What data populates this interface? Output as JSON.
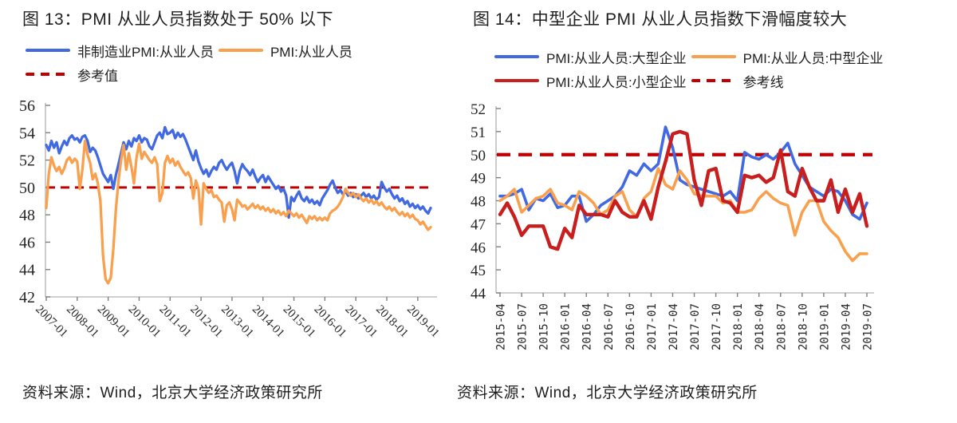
{
  "page": {
    "background": "#ffffff",
    "text_color": "#1f1f1f"
  },
  "colors": {
    "blue": "#4169E1",
    "orange": "#F9A04E",
    "red_line": "#C81E1E",
    "red_dashed": "#C00000",
    "axis": "#BFBFBF",
    "tick": "#808080"
  },
  "chart_data": [
    {
      "type": "line",
      "title": "图 13：PMI 从业人员指数处于 50% 以下",
      "source": "资料来源：Wind，北京大学经济政策研究所",
      "xlabel": "",
      "ylabel": "",
      "ylim": [
        42,
        56
      ],
      "y_ticks": [
        56,
        54,
        52,
        50,
        48,
        46,
        44,
        42
      ],
      "grid": false,
      "legend_position": "top-left",
      "x_frequency": "monthly",
      "x_range": [
        "2007-01",
        "2019-06"
      ],
      "x_tick_labels": [
        "2007-01",
        "2008-01",
        "2009-01",
        "2010-01",
        "2011-01",
        "2012-01",
        "2013-01",
        "2014-01",
        "2015-01",
        "2016-01",
        "2017-01",
        "2018-01",
        "2019-01"
      ],
      "x_tick_every_n_points": 12,
      "reference_line": {
        "label": "参考值",
        "value": 50,
        "color": "#C00000",
        "style": "dashed"
      },
      "series": [
        {
          "name": "非制造业PMI:从业人员",
          "color": "#4169E1",
          "values": [
            53.1,
            52.7,
            53.4,
            52.9,
            53.3,
            52.5,
            53.0,
            53.4,
            53.1,
            53.6,
            53.8,
            53.5,
            53.6,
            53.3,
            53.7,
            53.8,
            53.4,
            52.6,
            52.9,
            52.7,
            52.2,
            51.6,
            51.0,
            50.7,
            50.4,
            50.9,
            49.9,
            50.9,
            51.7,
            52.5,
            53.3,
            52.8,
            53.4,
            53.0,
            53.6,
            53.4,
            53.8,
            53.3,
            53.6,
            53.5,
            53.0,
            52.8,
            53.3,
            53.8,
            54.0,
            53.6,
            54.4,
            53.9,
            54.0,
            54.2,
            53.6,
            54.0,
            53.7,
            53.9,
            53.5,
            53.0,
            52.5,
            52.0,
            52.7,
            51.9,
            51.4,
            51.0,
            51.3,
            50.8,
            51.2,
            51.5,
            51.3,
            51.8,
            52.0,
            51.6,
            51.3,
            51.6,
            51.8,
            51.2,
            50.3,
            51.2,
            51.7,
            51.4,
            51.2,
            50.9,
            51.3,
            50.8,
            50.4,
            50.7,
            50.9,
            50.4,
            50.8,
            50.5,
            50.2,
            49.9,
            50.1,
            49.7,
            49.9,
            49.4,
            47.8,
            49.3,
            49.0,
            49.4,
            49.7,
            49.2,
            49.0,
            49.3,
            48.9,
            49.1,
            48.8,
            49.0,
            48.7,
            49.2,
            49.5,
            49.8,
            50.2,
            50.5,
            50.0,
            49.6,
            49.8,
            49.5,
            49.7,
            49.4,
            49.6,
            49.3,
            49.5,
            49.2,
            49.4,
            49.6,
            49.3,
            49.5,
            49.2,
            49.4,
            49.1,
            49.3,
            50.4,
            50.0,
            49.7,
            49.9,
            49.5,
            49.2,
            49.4,
            49.0,
            49.2,
            48.8,
            49.0,
            48.6,
            48.8,
            48.5,
            48.7,
            48.4,
            48.6,
            48.3,
            48.1,
            48.5
          ]
        },
        {
          "name": "PMI:从业人员",
          "color": "#F9A04E",
          "values": [
            48.5,
            51.0,
            52.2,
            51.6,
            51.2,
            51.5,
            51.0,
            51.4,
            52.0,
            52.2,
            51.8,
            52.1,
            51.9,
            49.9,
            51.3,
            53.4,
            52.4,
            51.8,
            50.6,
            51.0,
            50.3,
            49.0,
            45.0,
            43.3,
            43.0,
            43.4,
            45.5,
            48.4,
            50.5,
            52.0,
            53.1,
            51.3,
            52.5,
            51.5,
            50.3,
            52.2,
            53.2,
            52.1,
            52.6,
            52.3,
            52.0,
            51.8,
            52.2,
            51.7,
            49.0,
            49.6,
            51.8,
            52.3,
            51.8,
            52.1,
            51.6,
            51.9,
            51.5,
            51.2,
            50.9,
            51.1,
            50.7,
            49.2,
            50.5,
            49.9,
            47.3,
            50.3,
            49.9,
            49.6,
            49.8,
            49.3,
            49.4,
            49.1,
            48.9,
            47.5,
            48.7,
            48.9,
            48.4,
            47.6,
            49.1,
            48.9,
            48.6,
            48.7,
            48.4,
            48.6,
            48.8,
            48.5,
            48.7,
            48.4,
            48.6,
            48.3,
            48.5,
            48.2,
            48.4,
            48.1,
            48.3,
            48.0,
            48.2,
            47.9,
            48.3,
            48.1,
            47.9,
            48.1,
            47.8,
            48.0,
            47.7,
            47.4,
            47.9,
            47.7,
            47.9,
            47.6,
            47.8,
            47.6,
            47.8,
            47.6,
            48.1,
            48.3,
            48.4,
            48.6,
            48.9,
            49.3,
            49.9,
            49.6,
            49.4,
            49.6,
            49.3,
            49.5,
            49.2,
            49.0,
            49.2,
            48.9,
            49.1,
            48.8,
            49.0,
            48.7,
            48.9,
            48.6,
            48.4,
            48.6,
            48.3,
            48.5,
            48.2,
            48.0,
            48.2,
            47.9,
            48.1,
            47.8,
            48.0,
            47.7,
            47.6,
            47.3,
            47.5,
            47.2,
            46.9,
            47.1
          ]
        }
      ]
    },
    {
      "type": "line",
      "title": "图 14：中型企业 PMI 从业人员指数下滑幅度较大",
      "source": "资料来源：Wind，北京大学经济政策研究所",
      "xlabel": "",
      "ylabel": "",
      "ylim": [
        44,
        52
      ],
      "y_ticks": [
        52,
        51,
        50,
        49,
        48,
        47,
        46,
        45,
        44
      ],
      "grid": false,
      "legend_position": "top",
      "x_frequency": "monthly",
      "x_range": [
        "2015-04",
        "2019-07"
      ],
      "x_tick_labels": [
        "2015-04",
        "2015-07",
        "2015-10",
        "2016-01",
        "2016-04",
        "2016-07",
        "2016-10",
        "2017-01",
        "2017-04",
        "2017-07",
        "2017-10",
        "2018-01",
        "2018-04",
        "2018-07",
        "2018-10",
        "2019-01",
        "2019-04",
        "2019-07"
      ],
      "x_tick_every_n_points": 3,
      "reference_line": {
        "label": "参考线",
        "value": 50,
        "color": "#C00000",
        "style": "dashed"
      },
      "series": [
        {
          "name": "PMI:从业人员:大型企业",
          "color": "#4169E1",
          "values": [
            48.2,
            48.2,
            48.3,
            48.5,
            47.6,
            48.1,
            48.0,
            48.3,
            47.7,
            47.8,
            48.2,
            48.2,
            47.1,
            47.4,
            47.8,
            48.0,
            48.2,
            48.6,
            49.3,
            49.1,
            49.6,
            49.3,
            49.6,
            51.2,
            50.3,
            48.9,
            48.7,
            48.6,
            48.5,
            48.4,
            48.3,
            48.2,
            48.4,
            48.0,
            50.1,
            49.9,
            49.8,
            50.0,
            49.8,
            50.1,
            50.5,
            49.6,
            49.1,
            48.6,
            48.4,
            48.2,
            48.5,
            48.4,
            48.0,
            47.4,
            47.2,
            47.9
          ]
        },
        {
          "name": "PMI:从业人员:中型企业",
          "color": "#F9A04E",
          "values": [
            48.0,
            48.2,
            48.5,
            47.5,
            47.8,
            48.1,
            48.2,
            48.5,
            47.9,
            47.8,
            47.6,
            48.4,
            48.2,
            47.9,
            47.4,
            47.6,
            48.2,
            48.4,
            47.6,
            47.3,
            48.1,
            48.4,
            49.4,
            48.7,
            48.5,
            49.3,
            48.9,
            48.3,
            48.2,
            48.2,
            48.2,
            47.9,
            48.0,
            47.5,
            47.5,
            47.6,
            48.1,
            48.4,
            48.1,
            47.9,
            47.8,
            46.5,
            47.5,
            48.0,
            48.0,
            47.1,
            46.7,
            46.4,
            45.8,
            45.4,
            45.7,
            45.7
          ]
        },
        {
          "name": "PMI:从业人员:小型企业",
          "color": "#C81E1E",
          "values": [
            47.4,
            47.9,
            47.3,
            46.5,
            46.9,
            46.9,
            46.9,
            46.0,
            45.9,
            46.8,
            46.4,
            47.8,
            47.4,
            47.4,
            47.4,
            47.3,
            48.0,
            47.5,
            47.3,
            47.3,
            48.0,
            47.2,
            48.6,
            49.7,
            50.9,
            51.0,
            50.9,
            48.9,
            47.8,
            49.3,
            49.4,
            48.0,
            47.9,
            47.5,
            49.1,
            49.0,
            49.1,
            48.8,
            49.0,
            50.2,
            48.4,
            48.2,
            49.4,
            48.6,
            48.0,
            48.0,
            48.9,
            47.5,
            48.5,
            47.5,
            48.3,
            46.9
          ]
        }
      ]
    }
  ]
}
